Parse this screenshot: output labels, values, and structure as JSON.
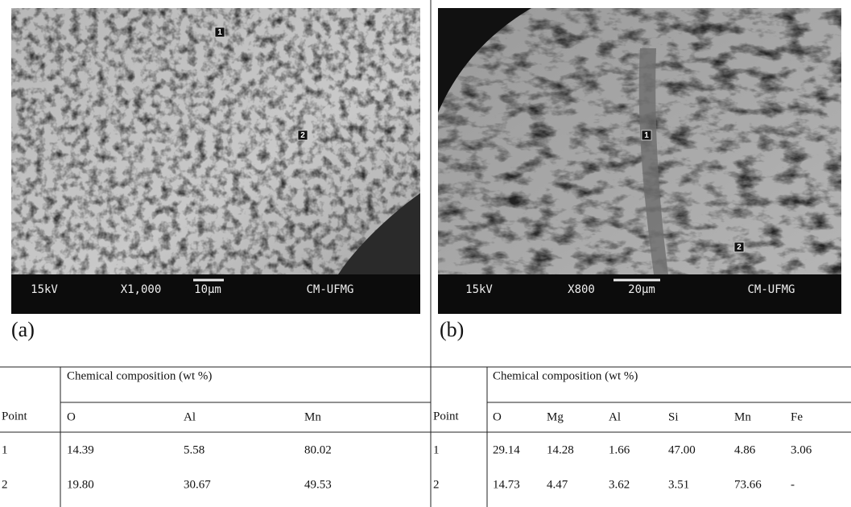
{
  "panels": [
    {
      "label": "(a)",
      "markers": [
        "1",
        "2"
      ],
      "info": {
        "voltage": "15kV",
        "magnification": "X1,000",
        "scale": "10µm",
        "lab": "CM-UFMG"
      }
    },
    {
      "label": "(b)",
      "markers": [
        "1",
        "2"
      ],
      "info": {
        "voltage": "15kV",
        "magnification": "X800",
        "scale": "20µm",
        "lab": "CM-UFMG"
      }
    }
  ],
  "tables": [
    {
      "group_header": "Chemical composition (wt %)",
      "columns": [
        "Point",
        "O",
        "Al",
        "Mn"
      ],
      "rows": [
        [
          "1",
          "14.39",
          "5.58",
          "80.02"
        ],
        [
          "2",
          "19.80",
          "30.67",
          "49.53"
        ]
      ]
    },
    {
      "group_header": "Chemical composition (wt %)",
      "columns": [
        "Point",
        "O",
        "Mg",
        "Al",
        "Si",
        "Mn",
        "Fe"
      ],
      "rows": [
        [
          "1",
          "29.14",
          "14.28",
          "1.66",
          "47.00",
          "4.86",
          "3.06"
        ],
        [
          "2",
          "14.73",
          "4.47",
          "3.62",
          "3.51",
          "73.66",
          "-"
        ]
      ]
    }
  ]
}
